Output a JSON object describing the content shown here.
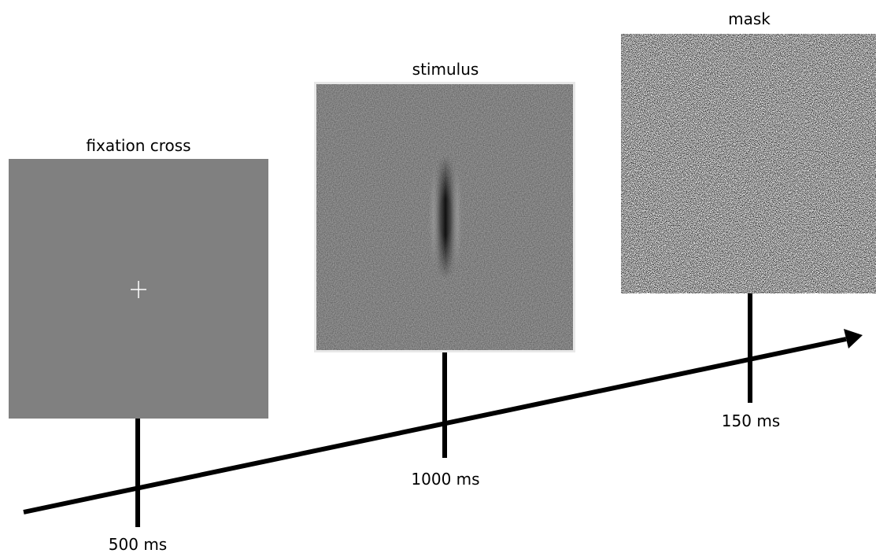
{
  "panels": [
    {
      "label": "fixation cross",
      "duration": "500 ms"
    },
    {
      "label": "stimulus",
      "duration": "1000 ms"
    },
    {
      "label": "mask",
      "duration": "150 ms"
    }
  ]
}
